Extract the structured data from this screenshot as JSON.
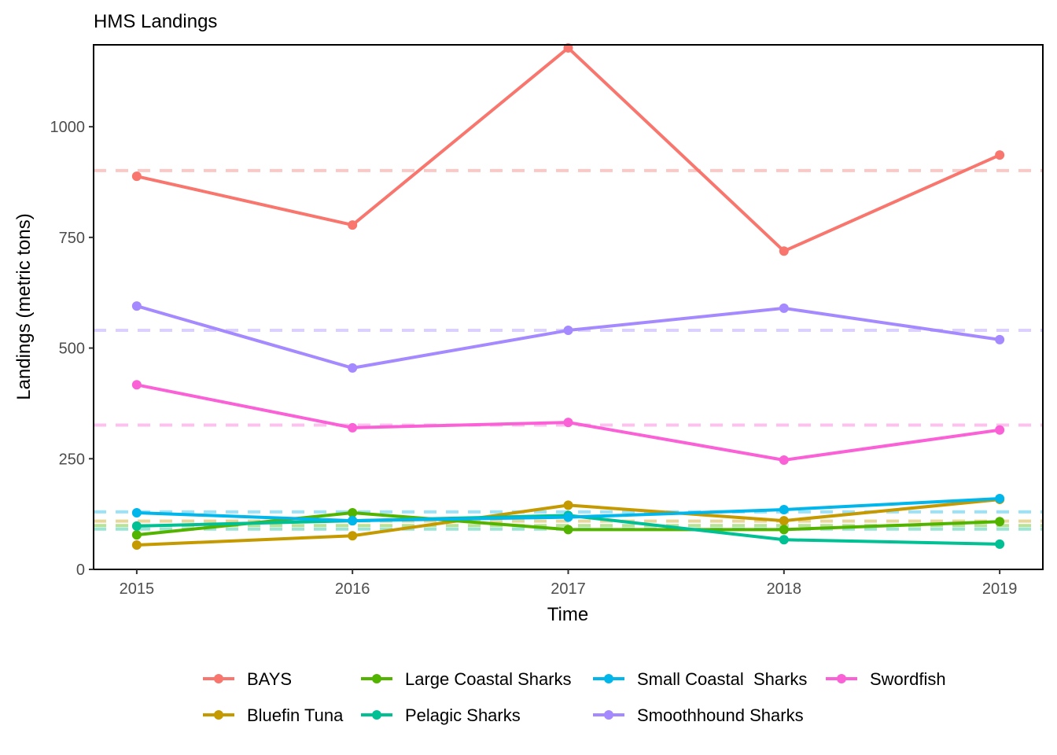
{
  "chart_data": {
    "type": "line",
    "title": "HMS Landings",
    "xlabel": "Time",
    "ylabel": "Landings (metric tons)",
    "x": [
      2015,
      2016,
      2017,
      2018,
      2019
    ],
    "x_tick_labels": [
      "2015",
      "2016",
      "2017",
      "2018",
      "2019"
    ],
    "xlim": [
      2014.8,
      2019.2
    ],
    "ylim": [
      0,
      1185
    ],
    "y_ticks": [
      0,
      250,
      500,
      750,
      1000
    ],
    "y_tick_labels": [
      "0",
      "250",
      "500",
      "750",
      "1000"
    ],
    "grid": false,
    "legend_position": "bottom",
    "series": [
      {
        "name": "BAYS",
        "color": "#F8766D",
        "values": [
          888,
          778,
          1178,
          719,
          936
        ],
        "mean_line": 901
      },
      {
        "name": "Bluefin Tuna",
        "color": "#C49A00",
        "values": [
          55,
          76,
          145,
          110,
          158
        ],
        "mean_line": 109
      },
      {
        "name": "Large Coastal Sharks",
        "color": "#53B400",
        "values": [
          78,
          128,
          90,
          90,
          108
        ],
        "mean_line": 99
      },
      {
        "name": "Pelagic Sharks",
        "color": "#00C094",
        "values": [
          98,
          110,
          122,
          67,
          57
        ],
        "mean_line": 91
      },
      {
        "name": "Small Coastal  Sharks",
        "color": "#00B6EB",
        "values": [
          128,
          110,
          118,
          135,
          160
        ],
        "mean_line": 130
      },
      {
        "name": "Smoothhound Sharks",
        "color": "#A58AFF",
        "values": [
          595,
          455,
          540,
          590,
          519
        ],
        "mean_line": 540
      },
      {
        "name": "Swordfish",
        "color": "#FB61D7",
        "values": [
          417,
          320,
          332,
          247,
          315
        ],
        "mean_line": 326
      }
    ],
    "legend_order": [
      "BAYS",
      "Large Coastal Sharks",
      "Small Coastal  Sharks",
      "Swordfish",
      "Bluefin Tuna",
      "Pelagic Sharks",
      "Smoothhound Sharks"
    ]
  }
}
